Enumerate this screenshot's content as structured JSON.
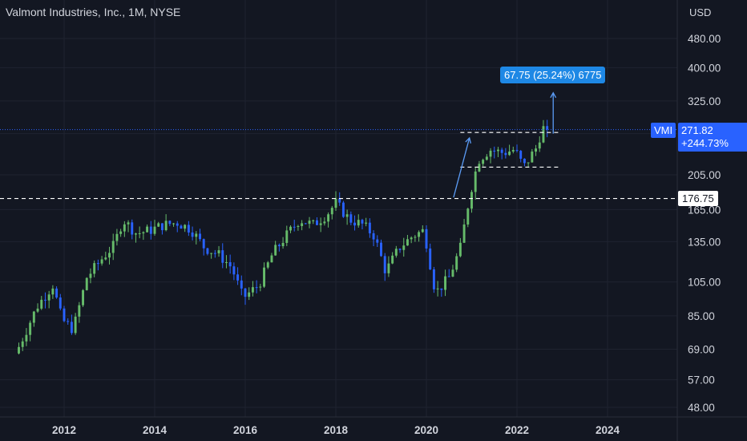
{
  "header": {
    "title": "Valmont Industries, Inc., 1M, NYSE",
    "currency": "USD"
  },
  "chart_data": {
    "type": "candlestick",
    "symbol": "VMI",
    "scale": "log",
    "ylim": [
      44,
      600
    ],
    "xlim": [
      2011.0,
      2025.35
    ],
    "y_ticks": [
      480,
      400,
      325,
      265,
      205,
      165,
      135,
      105,
      85,
      69,
      57,
      48
    ],
    "y_tick_labels": [
      "480.00",
      "400.00",
      "325.00",
      "",
      "205.00",
      "165.00",
      "135.00",
      "105.00",
      "85.00",
      "69.00",
      "57.00",
      "48.00"
    ],
    "x_ticks": [
      2012,
      2014,
      2016,
      2018,
      2020,
      2022,
      2024
    ],
    "x_tick_labels": [
      "2012",
      "2014",
      "2016",
      "2018",
      "2020",
      "2022",
      "2024"
    ],
    "last_price": {
      "symbol_label": "VMI",
      "value": 271.82,
      "value_label": "271.82",
      "change_label": "+244.73%"
    },
    "horizontal_line": {
      "value": 176.75,
      "label": "176.75"
    },
    "measure": {
      "label": "67.75 (25.24%) 6775"
    },
    "up_color": "#66bb6a",
    "down_color": "#2962ff",
    "accent": "#2962ff",
    "anchors": [
      [
        2011.0,
        70
      ],
      [
        2011.4,
        90
      ],
      [
        2011.75,
        103
      ],
      [
        2011.95,
        83
      ],
      [
        2012.2,
        78
      ],
      [
        2012.5,
        108
      ],
      [
        2012.85,
        122
      ],
      [
        2013.1,
        132
      ],
      [
        2013.3,
        155
      ],
      [
        2013.6,
        142
      ],
      [
        2013.9,
        145
      ],
      [
        2014.2,
        150
      ],
      [
        2014.5,
        152
      ],
      [
        2014.8,
        146
      ],
      [
        2015.1,
        130
      ],
      [
        2015.4,
        125
      ],
      [
        2015.7,
        115
      ],
      [
        2015.95,
        95
      ],
      [
        2016.3,
        103
      ],
      [
        2016.6,
        125
      ],
      [
        2016.9,
        140
      ],
      [
        2017.2,
        155
      ],
      [
        2017.5,
        150
      ],
      [
        2017.8,
        160
      ],
      [
        2018.0,
        172
      ],
      [
        2018.3,
        155
      ],
      [
        2018.6,
        150
      ],
      [
        2018.85,
        140
      ],
      [
        2019.1,
        112
      ],
      [
        2019.4,
        130
      ],
      [
        2019.7,
        140
      ],
      [
        2019.95,
        145
      ],
      [
        2020.2,
        98
      ],
      [
        2020.5,
        108
      ],
      [
        2020.75,
        130
      ],
      [
        2020.9,
        165
      ],
      [
        2021.0,
        190
      ],
      [
        2021.15,
        225
      ],
      [
        2021.4,
        240
      ],
      [
        2021.7,
        235
      ],
      [
        2021.95,
        240
      ],
      [
        2022.15,
        215
      ],
      [
        2022.3,
        230
      ],
      [
        2022.45,
        245
      ],
      [
        2022.55,
        275
      ],
      [
        2022.65,
        271.82
      ]
    ]
  }
}
